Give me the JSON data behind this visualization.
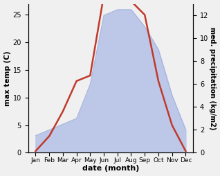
{
  "months": [
    "Jan",
    "Feb",
    "Mar",
    "Apr",
    "May",
    "Jun",
    "Jul",
    "Aug",
    "Sep",
    "Oct",
    "Nov",
    "Dec"
  ],
  "temperature": [
    0.3,
    3.0,
    7.5,
    13.0,
    14.0,
    28.5,
    27.5,
    27.5,
    25.0,
    13.0,
    5.0,
    0.3
  ],
  "precipitation": [
    1.5,
    2.0,
    2.5,
    3.0,
    6.0,
    12.0,
    12.5,
    12.5,
    11.0,
    9.0,
    5.0,
    2.0
  ],
  "temp_color": "#c0392b",
  "precip_fill_color": "#b8c4e8",
  "precip_line_color": "#9aaad8",
  "ylabel_left": "max temp (C)",
  "ylabel_right": "med. precipitation (kg/m2)",
  "xlabel": "date (month)",
  "ylim_left": [
    0,
    27
  ],
  "ylim_right": [
    0,
    13
  ],
  "yticks_left": [
    0,
    5,
    10,
    15,
    20,
    25
  ],
  "yticks_right": [
    0,
    2,
    4,
    6,
    8,
    10,
    12
  ],
  "bg_color": "#f0f0f0",
  "plot_bg_color": "#ffffff"
}
